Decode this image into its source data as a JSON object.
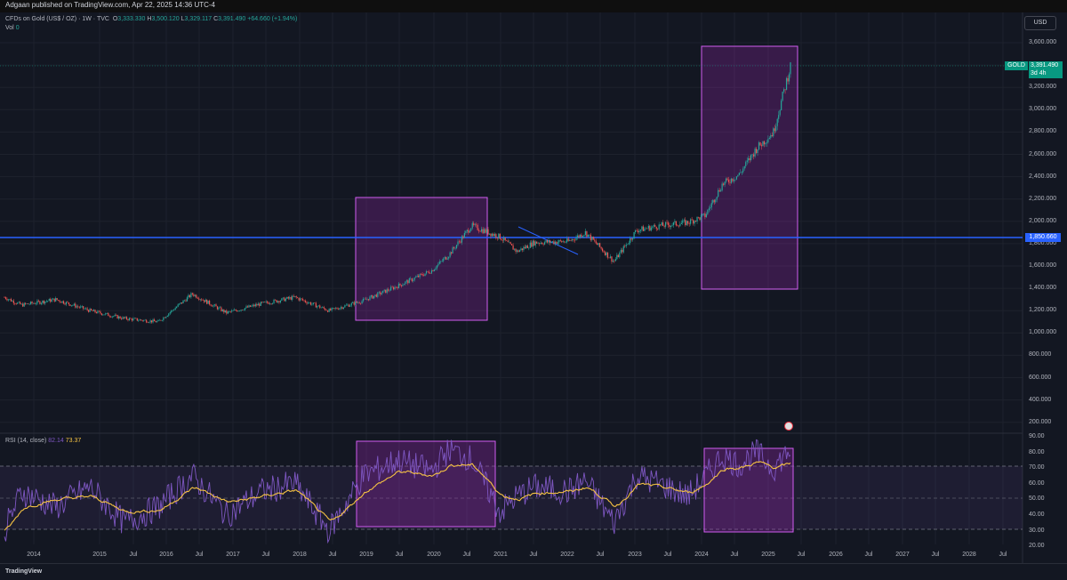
{
  "header": {
    "publish_line": "Adgaan published on TradingView.com, Apr 22, 2025 14:36 UTC-4"
  },
  "legend": {
    "symbol": "CFDs on Gold (US$ / OZ) · 1W · TVC",
    "open_lbl": "O",
    "open": "3,333.330",
    "high_lbl": "H",
    "high": "3,500.120",
    "low_lbl": "L",
    "low": "3,329.117",
    "close_lbl": "C",
    "close": "3,391.490",
    "change": "+64.660 (+1.94%)",
    "vol_lbl": "Vol",
    "vol": "0"
  },
  "rsi_legend": {
    "label": "RSI (14, close)",
    "rsi": "82.14",
    "ma": "73.37"
  },
  "currency": "USD",
  "price_label": {
    "ticker": "GOLD",
    "value": "3,391.490",
    "countdown": "3d 4h"
  },
  "horizontal_level": "1,850.660",
  "footer": {
    "brand": "TradingView"
  },
  "colors": {
    "bg": "#131722",
    "up": "#26a69a",
    "down": "#ef5350",
    "box": "#9c27b0",
    "rsi": "#7e57c2",
    "rsi_ma": "#f6c343",
    "level": "#2962ff"
  },
  "chart_data": [
    {
      "type": "candlestick",
      "title": "CFDs on Gold (US$ / OZ) · 1W · TVC",
      "y_ticks": [
        "3,600.000",
        "3,400.000",
        "3,200.000",
        "3,000.000",
        "2,800.000",
        "2,600.000",
        "2,400.000",
        "2,200.000",
        "2,000.000",
        "1,800.000",
        "1,600.000",
        "1,400.000",
        "1,200.000",
        "1,000.000",
        "800.000",
        "600.000",
        "400.000",
        "200.000"
      ],
      "x_ticks": [
        "2014",
        "2015",
        "Jul",
        "2016",
        "Jul",
        "2017",
        "Jul",
        "2018",
        "Jul",
        "2019",
        "Jul",
        "2020",
        "Jul",
        "2021",
        "Jul",
        "2022",
        "Jul",
        "2023",
        "Jul",
        "2024",
        "Jul",
        "2025",
        "Jul",
        "2026",
        "Jul",
        "2027",
        "Jul",
        "2028",
        "Jul"
      ],
      "x": [
        "2013-10",
        "2014-01",
        "2014-07",
        "2015-01",
        "2015-07",
        "2016-01",
        "2016-07",
        "2017-01",
        "2017-07",
        "2018-01",
        "2018-07",
        "2019-01",
        "2019-07",
        "2020-01",
        "2020-04",
        "2020-08",
        "2021-01",
        "2021-04",
        "2021-07",
        "2022-01",
        "2022-04",
        "2022-09",
        "2023-01",
        "2023-05",
        "2023-10",
        "2024-01",
        "2024-04",
        "2024-07",
        "2024-10",
        "2025-01",
        "2025-04"
      ],
      "close": [
        1320,
        1250,
        1300,
        1200,
        1130,
        1100,
        1350,
        1180,
        1260,
        1320,
        1200,
        1290,
        1420,
        1560,
        1700,
        1960,
        1860,
        1730,
        1810,
        1820,
        1900,
        1640,
        1920,
        1960,
        1990,
        2050,
        2330,
        2420,
        2650,
        2800,
        3391
      ],
      "levels": [
        1850.66
      ],
      "boxes": [
        {
          "from": "2018-09",
          "to": "2020-10",
          "low": 1100,
          "high": 2200
        },
        {
          "from": "2023-12",
          "to": "2025-05",
          "low": 1380,
          "high": 3580
        }
      ]
    },
    {
      "type": "line",
      "title": "RSI (14, close)",
      "y_ticks": [
        "90.00",
        "80.00",
        "70.00",
        "60.00",
        "50.00",
        "40.00",
        "30.00",
        "20.00"
      ],
      "ylim": [
        20,
        90
      ],
      "x": [
        "2013-10",
        "2014-01",
        "2014-07",
        "2015-01",
        "2015-07",
        "2016-01",
        "2016-07",
        "2017-01",
        "2017-07",
        "2018-01",
        "2018-07",
        "2019-01",
        "2019-07",
        "2020-01",
        "2020-04",
        "2020-08",
        "2021-01",
        "2021-04",
        "2021-07",
        "2022-01",
        "2022-04",
        "2022-09",
        "2023-01",
        "2023-05",
        "2023-10",
        "2024-01",
        "2024-04",
        "2024-07",
        "2024-10",
        "2025-01",
        "2025-04"
      ],
      "series": [
        {
          "values": [
            30,
            55,
            45,
            58,
            35,
            45,
            65,
            40,
            55,
            60,
            30,
            65,
            75,
            68,
            82,
            76,
            42,
            52,
            58,
            55,
            62,
            35,
            65,
            60,
            52,
            64,
            78,
            72,
            80,
            70,
            82.14
          ]
        },
        {
          "values": [
            30,
            45,
            50,
            52,
            42,
            43,
            58,
            48,
            52,
            56,
            35,
            55,
            68,
            65,
            72,
            72,
            52,
            50,
            54,
            55,
            58,
            45,
            60,
            58,
            54,
            60,
            70,
            70,
            74,
            70,
            73.37
          ]
        }
      ],
      "bands": [
        70,
        50,
        30
      ]
    }
  ]
}
